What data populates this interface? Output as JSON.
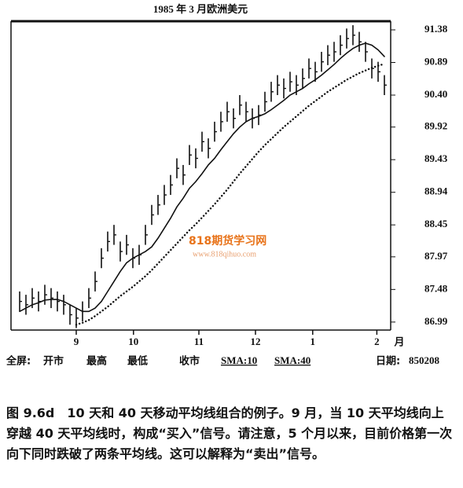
{
  "chart_data": {
    "type": "ohlc",
    "title": "1985 年 3 月欧洲美元",
    "x": [
      1,
      2,
      3,
      4,
      5,
      6,
      7,
      8,
      9,
      10,
      11,
      12,
      13,
      14,
      15,
      16,
      17,
      18,
      19,
      20,
      21,
      22,
      23,
      24,
      25,
      26,
      27,
      28,
      29,
      30,
      31,
      32,
      33,
      34,
      35,
      36,
      37,
      38,
      39,
      40,
      41,
      42,
      43,
      44,
      45,
      46,
      47,
      48,
      49,
      50,
      51,
      52,
      53,
      54,
      55,
      56,
      57,
      58,
      59
    ],
    "xlim": [
      0,
      60
    ],
    "xticks": [
      {
        "value": 10,
        "label": "9"
      },
      {
        "value": 19.1,
        "label": "10"
      },
      {
        "value": 29.5,
        "label": "11"
      },
      {
        "value": 38.5,
        "label": "12"
      },
      {
        "value": 47.6,
        "label": "1"
      },
      {
        "value": 57.8,
        "label": "2"
      }
    ],
    "xlabel": "月",
    "ylim": [
      86.87,
      91.51
    ],
    "yticks": [
      86.99,
      87.48,
      87.97,
      88.45,
      88.94,
      89.43,
      89.92,
      {
        "value": 90.4,
        "label": "90.40"
      },
      90.89,
      91.38
    ],
    "color": "#111111",
    "series": [
      {
        "name": "最高",
        "values": [
          87.45,
          87.4,
          87.5,
          87.45,
          87.55,
          87.5,
          87.45,
          87.4,
          87.25,
          87.2,
          87.3,
          87.5,
          87.75,
          88.1,
          88.35,
          88.45,
          88.2,
          88.3,
          88.1,
          88.15,
          88.45,
          88.75,
          88.9,
          89.05,
          89.2,
          89.45,
          89.35,
          89.65,
          89.6,
          89.85,
          89.75,
          90.0,
          90.15,
          90.3,
          90.2,
          90.4,
          90.3,
          90.2,
          90.25,
          90.45,
          90.6,
          90.7,
          90.65,
          90.75,
          90.7,
          90.8,
          90.95,
          90.9,
          91.05,
          91.15,
          91.2,
          91.3,
          91.4,
          91.45,
          91.35,
          91.2,
          90.95,
          90.9,
          90.7
        ]
      },
      {
        "name": "最低",
        "values": [
          87.15,
          87.1,
          87.2,
          87.15,
          87.25,
          87.2,
          87.15,
          87.1,
          86.95,
          86.9,
          87.0,
          87.2,
          87.45,
          87.8,
          88.05,
          88.15,
          87.9,
          88.0,
          87.8,
          87.85,
          88.15,
          88.45,
          88.6,
          88.75,
          88.9,
          89.15,
          89.05,
          89.35,
          89.3,
          89.55,
          89.45,
          89.7,
          89.85,
          90.0,
          89.9,
          90.1,
          90.0,
          89.9,
          89.95,
          90.15,
          90.3,
          90.4,
          90.35,
          90.45,
          90.4,
          90.5,
          90.65,
          90.6,
          90.75,
          90.85,
          90.9,
          91.0,
          91.1,
          91.15,
          91.05,
          90.9,
          90.65,
          90.6,
          90.4
        ]
      },
      {
        "name": "收市",
        "values": [
          87.3,
          87.25,
          87.35,
          87.3,
          87.4,
          87.35,
          87.3,
          87.25,
          87.1,
          87.05,
          87.15,
          87.35,
          87.6,
          87.95,
          88.2,
          88.3,
          88.05,
          88.15,
          87.95,
          88.0,
          88.3,
          88.6,
          88.75,
          88.9,
          89.05,
          89.3,
          89.2,
          89.5,
          89.45,
          89.7,
          89.6,
          89.85,
          90.0,
          90.15,
          90.05,
          90.25,
          90.15,
          90.05,
          90.1,
          90.3,
          90.45,
          90.55,
          90.5,
          90.6,
          90.55,
          90.65,
          90.8,
          90.75,
          90.9,
          91.0,
          91.05,
          91.15,
          91.25,
          91.3,
          91.2,
          91.05,
          90.8,
          90.75,
          90.55
        ]
      },
      {
        "name": "SMA:10",
        "line_style": "solid",
        "values": [
          87.15,
          87.2,
          87.25,
          87.28,
          87.32,
          87.33,
          87.33,
          87.3,
          87.25,
          87.2,
          87.15,
          87.15,
          87.2,
          87.3,
          87.45,
          87.6,
          87.75,
          87.88,
          87.95,
          88.0,
          88.05,
          88.12,
          88.25,
          88.4,
          88.55,
          88.72,
          88.85,
          89.0,
          89.1,
          89.22,
          89.35,
          89.45,
          89.58,
          89.7,
          89.82,
          89.92,
          90.0,
          90.05,
          90.08,
          90.12,
          90.18,
          90.25,
          90.32,
          90.4,
          90.45,
          90.5,
          90.57,
          90.63,
          90.7,
          90.78,
          90.86,
          90.95,
          91.03,
          91.1,
          91.15,
          91.18,
          91.15,
          91.08,
          90.98
        ]
      },
      {
        "name": "SMA:40",
        "line_style": "dotted",
        "values": [
          null,
          null,
          null,
          null,
          null,
          null,
          null,
          null,
          null,
          86.95,
          86.98,
          87.02,
          87.08,
          87.15,
          87.22,
          87.3,
          87.38,
          87.45,
          87.52,
          87.6,
          87.68,
          87.77,
          87.87,
          87.97,
          88.07,
          88.17,
          88.27,
          88.37,
          88.46,
          88.56,
          88.66,
          88.76,
          88.87,
          88.98,
          89.1,
          89.22,
          89.33,
          89.44,
          89.55,
          89.65,
          89.74,
          89.83,
          89.92,
          90.0,
          90.08,
          90.16,
          90.24,
          90.31,
          90.38,
          90.45,
          90.51,
          90.57,
          90.63,
          90.68,
          90.73,
          90.77,
          90.81,
          90.84,
          90.87
        ]
      }
    ]
  },
  "footer": {
    "screen_label": "全屏:",
    "open_label": "开市",
    "date_label": "日期:",
    "date": "850208"
  },
  "watermark": {
    "title": "818期货学习网",
    "url": "www.818qihuo.com"
  },
  "caption": {
    "label": "图 9.6d",
    "text": "10 天和 40 天移动平均线组合的例子。9 月，当 10 天平均线向上穿越 40 天平均线时，构成“买入”信号。请注意，5 个月以来，目前价格第一次向下同时跌破了两条平均线。这可以解释为“卖出”信号。"
  }
}
